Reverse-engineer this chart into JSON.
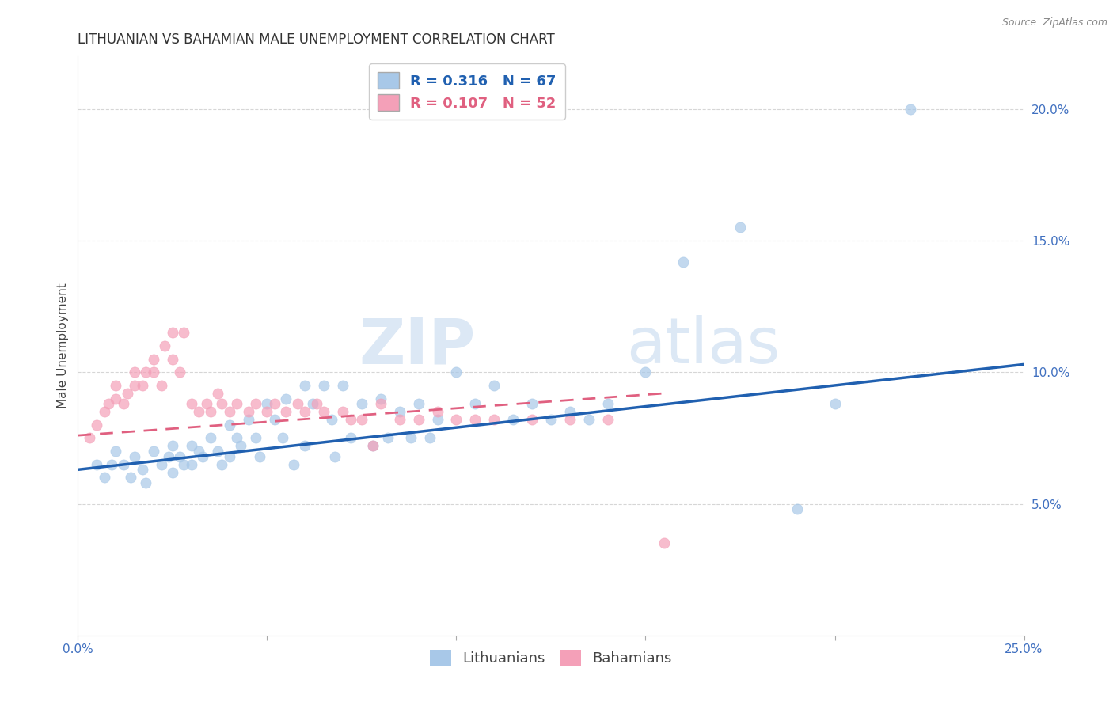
{
  "title": "LITHUANIAN VS BAHAMIAN MALE UNEMPLOYMENT CORRELATION CHART",
  "source_text": "Source: ZipAtlas.com",
  "ylabel": "Male Unemployment",
  "xlim": [
    0.0,
    0.25
  ],
  "ylim": [
    0.0,
    0.22
  ],
  "xticks": [
    0.0,
    0.05,
    0.1,
    0.15,
    0.2,
    0.25
  ],
  "xticklabels": [
    "0.0%",
    "",
    "",
    "",
    "",
    "25.0%"
  ],
  "yticks": [
    0.05,
    0.1,
    0.15,
    0.2
  ],
  "yticklabels": [
    "5.0%",
    "10.0%",
    "15.0%",
    "20.0%"
  ],
  "legend_R1": "R = 0.316",
  "legend_N1": "N = 67",
  "legend_R2": "R = 0.107",
  "legend_N2": "N = 52",
  "legend_label1": "Lithuanians",
  "legend_label2": "Bahamians",
  "color_blue": "#a8c8e8",
  "color_pink": "#f4a0b8",
  "line_blue": "#2060b0",
  "line_pink": "#e06080",
  "watermark_zip": "ZIP",
  "watermark_atlas": "atlas",
  "title_fontsize": 12,
  "axis_label_fontsize": 11,
  "tick_fontsize": 11,
  "legend_fontsize": 13,
  "blue_scatter_x": [
    0.005,
    0.007,
    0.009,
    0.01,
    0.012,
    0.014,
    0.015,
    0.017,
    0.018,
    0.02,
    0.022,
    0.024,
    0.025,
    0.025,
    0.027,
    0.028,
    0.03,
    0.03,
    0.032,
    0.033,
    0.035,
    0.037,
    0.038,
    0.04,
    0.04,
    0.042,
    0.043,
    0.045,
    0.047,
    0.048,
    0.05,
    0.052,
    0.054,
    0.055,
    0.057,
    0.06,
    0.06,
    0.062,
    0.065,
    0.067,
    0.068,
    0.07,
    0.072,
    0.075,
    0.078,
    0.08,
    0.082,
    0.085,
    0.088,
    0.09,
    0.093,
    0.095,
    0.1,
    0.105,
    0.11,
    0.115,
    0.12,
    0.125,
    0.13,
    0.135,
    0.14,
    0.15,
    0.16,
    0.175,
    0.19,
    0.2,
    0.22
  ],
  "blue_scatter_y": [
    0.065,
    0.06,
    0.065,
    0.07,
    0.065,
    0.06,
    0.068,
    0.063,
    0.058,
    0.07,
    0.065,
    0.068,
    0.072,
    0.062,
    0.068,
    0.065,
    0.072,
    0.065,
    0.07,
    0.068,
    0.075,
    0.07,
    0.065,
    0.08,
    0.068,
    0.075,
    0.072,
    0.082,
    0.075,
    0.068,
    0.088,
    0.082,
    0.075,
    0.09,
    0.065,
    0.095,
    0.072,
    0.088,
    0.095,
    0.082,
    0.068,
    0.095,
    0.075,
    0.088,
    0.072,
    0.09,
    0.075,
    0.085,
    0.075,
    0.088,
    0.075,
    0.082,
    0.1,
    0.088,
    0.095,
    0.082,
    0.088,
    0.082,
    0.085,
    0.082,
    0.088,
    0.1,
    0.142,
    0.155,
    0.048,
    0.088,
    0.2
  ],
  "pink_scatter_x": [
    0.003,
    0.005,
    0.007,
    0.008,
    0.01,
    0.01,
    0.012,
    0.013,
    0.015,
    0.015,
    0.017,
    0.018,
    0.02,
    0.02,
    0.022,
    0.023,
    0.025,
    0.025,
    0.027,
    0.028,
    0.03,
    0.032,
    0.034,
    0.035,
    0.037,
    0.038,
    0.04,
    0.042,
    0.045,
    0.047,
    0.05,
    0.052,
    0.055,
    0.058,
    0.06,
    0.063,
    0.065,
    0.07,
    0.072,
    0.075,
    0.078,
    0.08,
    0.085,
    0.09,
    0.095,
    0.1,
    0.105,
    0.11,
    0.12,
    0.13,
    0.14,
    0.155
  ],
  "pink_scatter_y": [
    0.075,
    0.08,
    0.085,
    0.088,
    0.09,
    0.095,
    0.088,
    0.092,
    0.095,
    0.1,
    0.095,
    0.1,
    0.1,
    0.105,
    0.095,
    0.11,
    0.105,
    0.115,
    0.1,
    0.115,
    0.088,
    0.085,
    0.088,
    0.085,
    0.092,
    0.088,
    0.085,
    0.088,
    0.085,
    0.088,
    0.085,
    0.088,
    0.085,
    0.088,
    0.085,
    0.088,
    0.085,
    0.085,
    0.082,
    0.082,
    0.072,
    0.088,
    0.082,
    0.082,
    0.085,
    0.082,
    0.082,
    0.082,
    0.082,
    0.082,
    0.082,
    0.035
  ],
  "blue_line_x": [
    0.0,
    0.25
  ],
  "blue_line_y": [
    0.063,
    0.103
  ],
  "pink_line_x": [
    0.0,
    0.155
  ],
  "pink_line_y": [
    0.076,
    0.092
  ]
}
